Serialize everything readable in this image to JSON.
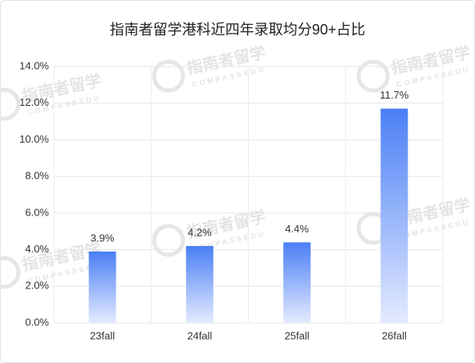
{
  "chart_data": {
    "type": "bar",
    "title": "指南者留学港科近四年录取均分90+占比",
    "watermark": {
      "text": "指南者留学",
      "subtext": "COMPASSEDU"
    },
    "categories": [
      "23fall",
      "24fall",
      "25fall",
      "26fall"
    ],
    "values": [
      3.9,
      4.2,
      4.4,
      11.7
    ],
    "value_labels": [
      "3.9%",
      "4.2%",
      "4.4%",
      "11.7%"
    ],
    "color": "#4a7ff5",
    "ylim": [
      0,
      14
    ],
    "yticks": [
      {
        "value": 0,
        "label": "0.0%"
      },
      {
        "value": 2,
        "label": "2.0%"
      },
      {
        "value": 4,
        "label": "4.0%"
      },
      {
        "value": 6,
        "label": "6.0%"
      },
      {
        "value": 8,
        "label": "8.0%"
      },
      {
        "value": 10,
        "label": "10.0%"
      },
      {
        "value": 12,
        "label": "12.0%"
      },
      {
        "value": 14,
        "label": "14.0%"
      }
    ],
    "grid": true
  }
}
